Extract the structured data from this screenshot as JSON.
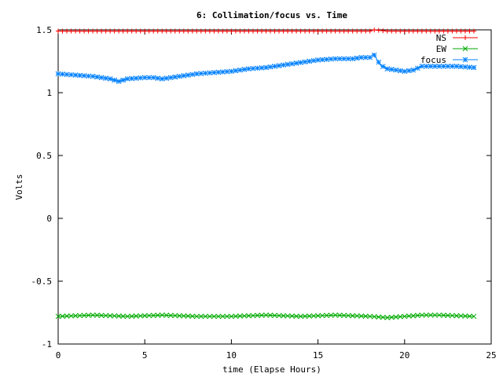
{
  "chart_data": {
    "type": "line",
    "title": "6: Collimation/focus vs. Time",
    "xlabel": "time (Elapse Hours)",
    "ylabel": "Volts",
    "xlim": [
      0,
      25
    ],
    "ylim": [
      -1,
      1.5
    ],
    "xticks": [
      "0",
      "5",
      "10",
      "15",
      "20",
      "25"
    ],
    "yticks": [
      "-1",
      "-0.5",
      "0",
      "0.5",
      "1",
      "1.5"
    ],
    "grid": false,
    "legend_position": "top-right",
    "series": [
      {
        "name": "NS",
        "color": "#ff0000",
        "marker": "plus",
        "x": [
          0,
          2,
          4,
          6,
          8,
          10,
          12,
          14,
          16,
          18,
          18.2,
          19,
          20,
          22,
          24
        ],
        "y": [
          1.49,
          1.49,
          1.49,
          1.49,
          1.49,
          1.49,
          1.49,
          1.49,
          1.49,
          1.49,
          1.5,
          1.49,
          1.49,
          1.49,
          1.49
        ]
      },
      {
        "name": "EW",
        "color": "#00aa00",
        "marker": "cross",
        "x": [
          0,
          2,
          4,
          6,
          8,
          10,
          12,
          14,
          16,
          18,
          19,
          20,
          21,
          22,
          24
        ],
        "y": [
          -0.78,
          -0.77,
          -0.78,
          -0.77,
          -0.78,
          -0.78,
          -0.77,
          -0.78,
          -0.77,
          -0.78,
          -0.79,
          -0.78,
          -0.77,
          -0.77,
          -0.78
        ]
      },
      {
        "name": "focus",
        "color": "#0080ff",
        "marker": "star",
        "x": [
          0,
          1,
          2,
          3,
          3.5,
          4,
          5,
          5.5,
          6,
          7,
          8,
          9,
          10,
          11,
          12,
          13,
          14,
          15,
          16,
          17,
          17.5,
          18,
          18.2,
          18.6,
          19,
          19.5,
          20,
          20.5,
          21,
          22,
          23,
          24
        ],
        "y": [
          1.15,
          1.14,
          1.13,
          1.11,
          1.09,
          1.11,
          1.12,
          1.12,
          1.11,
          1.13,
          1.15,
          1.16,
          1.17,
          1.19,
          1.2,
          1.22,
          1.24,
          1.26,
          1.27,
          1.27,
          1.28,
          1.28,
          1.31,
          1.22,
          1.19,
          1.18,
          1.17,
          1.18,
          1.21,
          1.21,
          1.21,
          1.2
        ]
      }
    ]
  }
}
